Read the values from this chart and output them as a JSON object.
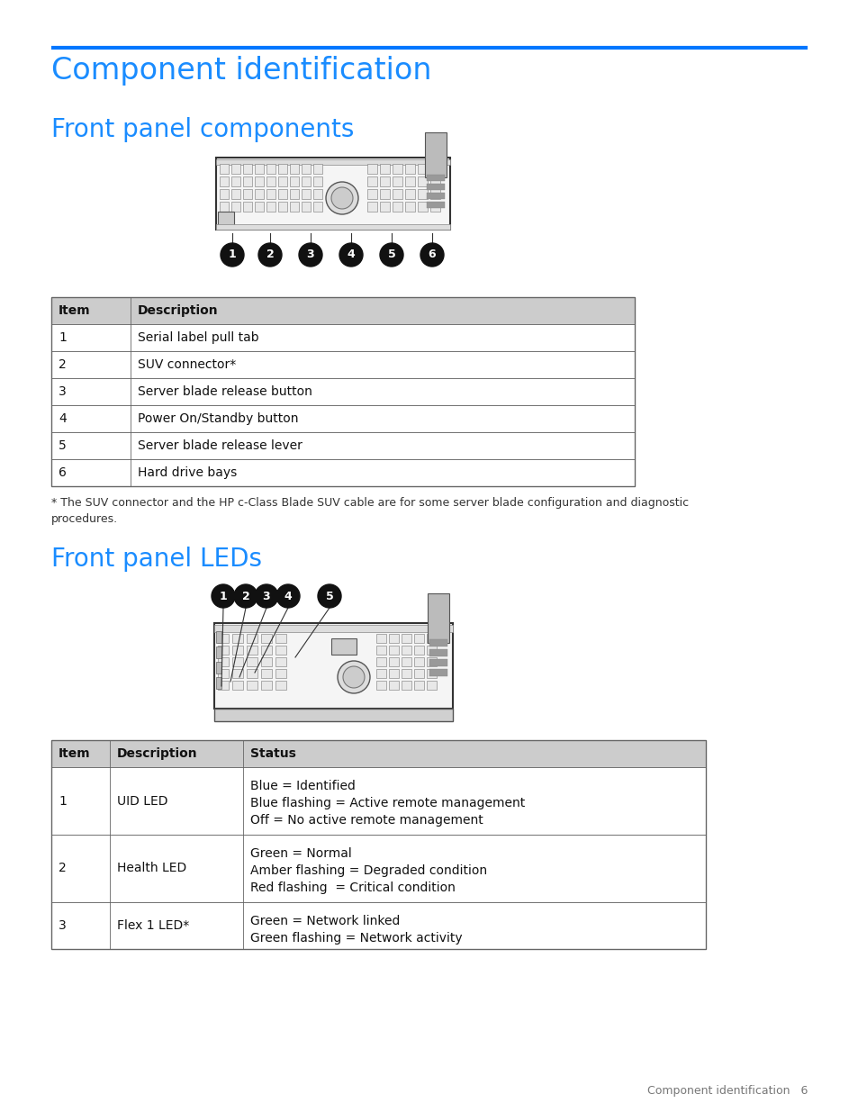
{
  "page_bg": "#ffffff",
  "blue_line_color": "#0077ff",
  "heading1": "Component identification",
  "heading2": "Front panel components",
  "heading3": "Front panel LEDs",
  "heading_color": "#1a8cff",
  "heading1_fontsize": 24,
  "heading2_fontsize": 20,
  "heading3_fontsize": 20,
  "table1_headers": [
    "Item",
    "Description"
  ],
  "table1_rows": [
    [
      "1",
      "Serial label pull tab"
    ],
    [
      "2",
      "SUV connector*"
    ],
    [
      "3",
      "Server blade release button"
    ],
    [
      "4",
      "Power On/Standby button"
    ],
    [
      "5",
      "Server blade release lever"
    ],
    [
      "6",
      "Hard drive bays"
    ]
  ],
  "table1_note": "* The SUV connector and the HP c-Class Blade SUV cable are for some server blade configuration and diagnostic\nprocedures.",
  "table2_headers": [
    "Item",
    "Description",
    "Status"
  ],
  "table2_rows": [
    [
      "1",
      "UID LED",
      "Blue = Identified\nBlue flashing = Active remote management\nOff = No active remote management"
    ],
    [
      "2",
      "Health LED",
      "Green = Normal\nAmber flashing = Degraded condition\nRed flashing  = Critical condition"
    ],
    [
      "3",
      "Flex 1 LED*",
      "Green = Network linked\nGreen flashing = Network activity"
    ]
  ],
  "footer_text": "Component identification   6",
  "table_header_bg": "#cccccc",
  "table_border_color": "#666666",
  "text_color": "#222222",
  "body_fontsize": 10,
  "header_fontsize": 10,
  "note_fontsize": 9
}
